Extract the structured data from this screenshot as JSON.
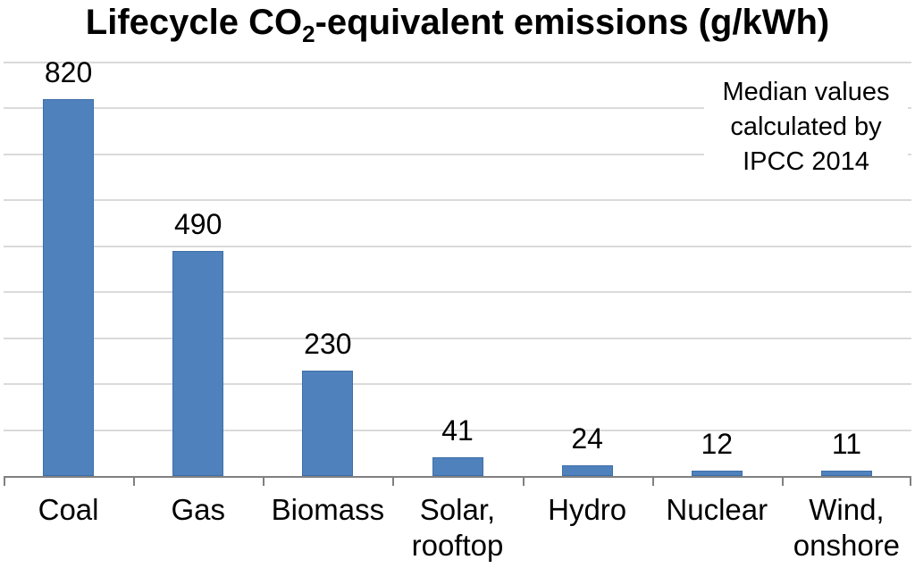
{
  "title": {
    "pre": "Lifecycle CO",
    "sub": "2",
    "post": "-equivalent emissions (g/kWh)"
  },
  "annotation": {
    "text": "Median values\ncalculated by\nIPCC 2014"
  },
  "chart_data": {
    "type": "bar",
    "title": "Lifecycle CO2-equivalent emissions (g/kWh)",
    "categories": [
      "Coal",
      "Gas",
      "Biomass",
      "Solar,\nrooftop",
      "Hydro",
      "Nuclear",
      "Wind,\nonshore"
    ],
    "category_ids": [
      "coal",
      "gas",
      "biomass",
      "solar-rooftop",
      "hydro",
      "nuclear",
      "wind-onshore"
    ],
    "values": [
      820,
      490,
      230,
      41,
      24,
      12,
      11
    ],
    "value_labels": [
      "820",
      "490",
      "230",
      "41",
      "24",
      "12",
      "11"
    ],
    "annotation": "Median values calculated by IPCC 2014",
    "xlabel": "",
    "ylabel": "",
    "ylim": [
      0,
      900
    ],
    "gridline_interval": 100,
    "grid": true,
    "legend": false,
    "colors": {
      "bar_fill": "#4F81BD",
      "bar_border": "#3E6FA8",
      "gridline": "#DADADA",
      "axis": "#808080",
      "text": "#000000"
    }
  }
}
